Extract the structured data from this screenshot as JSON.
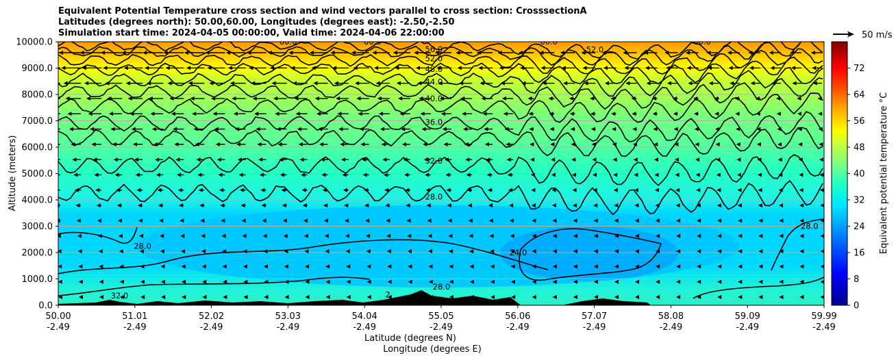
{
  "chart_data": {
    "type": "contour",
    "title_lines": [
      "Equivalent Potential Temperature cross section and wind vectors parallel to cross section: CrosssectionA",
      "Latitudes (degrees north): 50.00,60.00, Longitudes (degrees east): -2.50,-2.50",
      "Simulation start time: 2024-04-05 00:00:00, Valid time: 2024-04-06 22:00:00"
    ],
    "ylabel": "Altitude (meters)",
    "xlabel_1": "Latitude (degrees N)",
    "xlabel_2": "Longitude (degrees E)",
    "xlim": [
      50.0,
      59.99
    ],
    "ylim": [
      0,
      10000
    ],
    "y_ticks": [
      "0.0",
      "1000.0",
      "2000.0",
      "3000.0",
      "4000.0",
      "5000.0",
      "6000.0",
      "7000.0",
      "8000.0",
      "9000.0",
      "10000.0"
    ],
    "x_ticks": [
      {
        "lat": "50.00",
        "lon": "-2.49"
      },
      {
        "lat": "51.01",
        "lon": "-2.49"
      },
      {
        "lat": "52.02",
        "lon": "-2.49"
      },
      {
        "lat": "53.03",
        "lon": "-2.49"
      },
      {
        "lat": "54.04",
        "lon": "-2.49"
      },
      {
        "lat": "55.05",
        "lon": "-2.49"
      },
      {
        "lat": "56.06",
        "lon": "-2.49"
      },
      {
        "lat": "57.07",
        "lon": "-2.49"
      },
      {
        "lat": "58.08",
        "lon": "-2.49"
      },
      {
        "lat": "59.09",
        "lon": "-2.49"
      },
      {
        "lat": "59.99",
        "lon": "-2.49"
      }
    ],
    "contour_labels": [
      {
        "text": "56.0",
        "lat": 54.9,
        "alt": 9720
      },
      {
        "text": "52.0",
        "lat": 54.9,
        "alt": 9370
      },
      {
        "text": "48.0",
        "lat": 54.9,
        "alt": 8960
      },
      {
        "text": "44.0",
        "lat": 54.9,
        "alt": 8480
      },
      {
        "text": "40.0",
        "lat": 54.9,
        "alt": 7850
      },
      {
        "text": "36.0",
        "lat": 54.9,
        "alt": 6950
      },
      {
        "text": "32.0",
        "lat": 54.9,
        "alt": 5480
      },
      {
        "text": "28.0",
        "lat": 54.9,
        "alt": 4120
      },
      {
        "text": "28.0",
        "lat": 55.0,
        "alt": 700
      },
      {
        "text": "28.0",
        "lat": 51.1,
        "alt": 2250
      },
      {
        "text": "24.0",
        "lat": 56.0,
        "alt": 2000
      },
      {
        "text": "52.0",
        "lat": 57.0,
        "alt": 9700
      },
      {
        "text": "28.0",
        "lat": 59.8,
        "alt": 3000
      },
      {
        "text": "32.0",
        "lat": 50.8,
        "alt": 360
      },
      {
        "text": "60.0",
        "lat": 53.0,
        "alt": 10000
      },
      {
        "text": "60.0",
        "lat": 54.1,
        "alt": 10000
      },
      {
        "text": "60.0",
        "lat": 56.4,
        "alt": 10000
      },
      {
        "text": "60.0",
        "lat": 58.4,
        "alt": 10000
      },
      {
        "text": "2",
        "lat": 54.3,
        "alt": 400
      }
    ],
    "colorbar": {
      "label": "Equivalent potential temperature °C",
      "range": [
        0,
        80
      ],
      "ticks": [
        "0",
        "8",
        "16",
        "24",
        "32",
        "40",
        "48",
        "56",
        "64",
        "72"
      ]
    },
    "wind_key": {
      "label": "50 m/s",
      "speed": 50
    },
    "wind_direction": "southward (toward lower latitude)"
  }
}
